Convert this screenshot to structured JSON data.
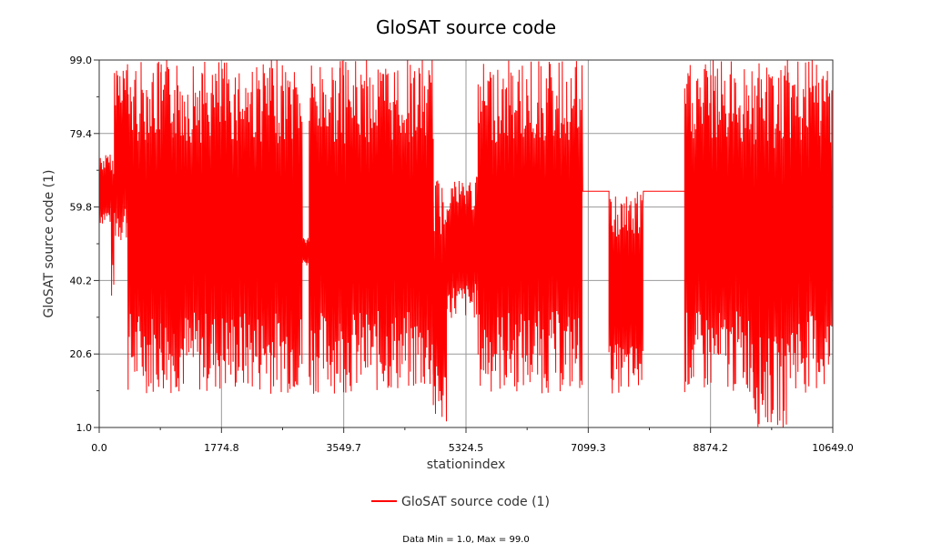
{
  "chart_data": {
    "type": "line",
    "title": "GloSAT source code",
    "xlabel": "stationindex",
    "ylabel": "GloSAT source code (1)",
    "xlim": [
      0.0,
      10649.0
    ],
    "ylim": [
      1.0,
      99.0
    ],
    "x_ticks": [
      "0.0",
      "1774.8",
      "3549.7",
      "5324.5",
      "7099.3",
      "8874.2",
      "10649.0"
    ],
    "y_ticks": [
      "1.0",
      "20.6",
      "40.2",
      "59.8",
      "79.4",
      "99.0"
    ],
    "grid": true,
    "legend_position": "bottom-center",
    "series": [
      {
        "name": "GloSAT source code (1)",
        "color": "#ff0000",
        "segments": [
          {
            "x_start": 0,
            "x_end": 180,
            "low": 55,
            "high": 74
          },
          {
            "x_start": 180,
            "x_end": 220,
            "low": 35,
            "high": 74
          },
          {
            "x_start": 220,
            "x_end": 420,
            "low": 50,
            "high": 99
          },
          {
            "x_start": 420,
            "x_end": 560,
            "low": 10,
            "high": 99
          },
          {
            "x_start": 560,
            "x_end": 720,
            "low": 10,
            "high": 99
          },
          {
            "x_start": 720,
            "x_end": 900,
            "low": 10,
            "high": 99
          },
          {
            "x_start": 900,
            "x_end": 1080,
            "low": 10,
            "high": 99
          },
          {
            "x_start": 1080,
            "x_end": 1500,
            "low": 10,
            "high": 99
          },
          {
            "x_start": 1500,
            "x_end": 2000,
            "low": 10,
            "high": 99
          },
          {
            "x_start": 2000,
            "x_end": 2500,
            "low": 10,
            "high": 99
          },
          {
            "x_start": 2500,
            "x_end": 2950,
            "low": 10,
            "high": 99
          },
          {
            "x_start": 2950,
            "x_end": 3050,
            "low": 44,
            "high": 52
          },
          {
            "x_start": 3050,
            "x_end": 3500,
            "low": 10,
            "high": 99
          },
          {
            "x_start": 3500,
            "x_end": 4000,
            "low": 10,
            "high": 99
          },
          {
            "x_start": 4000,
            "x_end": 4500,
            "low": 10,
            "high": 99
          },
          {
            "x_start": 4500,
            "x_end": 4850,
            "low": 10,
            "high": 99
          },
          {
            "x_start": 4850,
            "x_end": 5050,
            "low": 1,
            "high": 68
          },
          {
            "x_start": 5050,
            "x_end": 5500,
            "low": 30,
            "high": 68
          },
          {
            "x_start": 5500,
            "x_end": 6000,
            "low": 10,
            "high": 99
          },
          {
            "x_start": 6000,
            "x_end": 6500,
            "low": 10,
            "high": 99
          },
          {
            "x_start": 6500,
            "x_end": 7020,
            "low": 10,
            "high": 99
          },
          {
            "x_start": 7020,
            "x_end": 7400,
            "low": 64,
            "high": 64
          },
          {
            "x_start": 7400,
            "x_end": 7900,
            "low": 10,
            "high": 64
          },
          {
            "x_start": 7900,
            "x_end": 8500,
            "low": 64,
            "high": 64
          },
          {
            "x_start": 8500,
            "x_end": 9000,
            "low": 10,
            "high": 99
          },
          {
            "x_start": 9000,
            "x_end": 9500,
            "low": 10,
            "high": 99
          },
          {
            "x_start": 9500,
            "x_end": 10000,
            "low": 1,
            "high": 99
          },
          {
            "x_start": 10000,
            "x_end": 10649,
            "low": 10,
            "high": 99
          }
        ]
      }
    ],
    "footnote": "Data Min = 1.0, Max = 99.0"
  }
}
